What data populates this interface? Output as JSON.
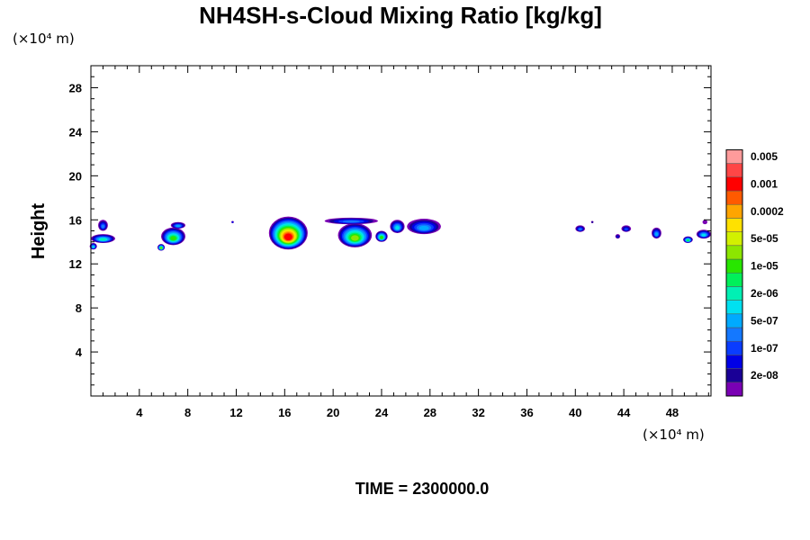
{
  "chart_data": {
    "type": "heatmap",
    "title": "NH4SH-s-Cloud Mixing Ratio [kg/kg]",
    "x_unit": "(×10⁴  m)",
    "y_unit": "(×10⁴  m)",
    "ylabel": "Height",
    "xlabel": "",
    "xlim": [
      0,
      51.2
    ],
    "ylim": [
      0,
      30
    ],
    "x_ticks": [
      4,
      8,
      12,
      16,
      20,
      24,
      28,
      32,
      36,
      40,
      44,
      48
    ],
    "y_ticks": [
      4,
      8,
      12,
      16,
      20,
      24,
      28
    ],
    "x_tick_labels": [
      "4",
      "8",
      "12",
      "16",
      "20",
      "24",
      "28",
      "32",
      "36",
      "40",
      "44",
      "48"
    ],
    "y_tick_labels": [
      "4",
      "8",
      "12",
      "16",
      "20",
      "24",
      "28"
    ],
    "colorbar": {
      "colors": [
        "#7a00b4",
        "#1a0096",
        "#0000e6",
        "#0a3cff",
        "#1478ff",
        "#00aaff",
        "#00e1f0",
        "#00f0b4",
        "#00f05a",
        "#28e600",
        "#8ce600",
        "#d2f000",
        "#ffe100",
        "#ffa500",
        "#ff5a00",
        "#ff0000",
        "#ff4646",
        "#ff9b9b"
      ],
      "labels": [
        "2e-08",
        "1e-07",
        "5e-07",
        "2e-06",
        "1e-05",
        "5e-05",
        "0.0002",
        "0.001",
        "0.005"
      ],
      "label_level_index": [
        1,
        3,
        5,
        7,
        9,
        11,
        13,
        15,
        17
      ]
    },
    "cloud_features": [
      {
        "x": 1.0,
        "y": 14.3,
        "rx": 1.0,
        "ry": 0.4,
        "peak_level": 7
      },
      {
        "x": 1.0,
        "y": 15.5,
        "rx": 0.4,
        "ry": 0.5,
        "peak_level": 4
      },
      {
        "x": 0.2,
        "y": 13.6,
        "rx": 0.3,
        "ry": 0.3,
        "peak_level": 6
      },
      {
        "x": 6.8,
        "y": 14.5,
        "rx": 1.0,
        "ry": 0.8,
        "peak_level": 9
      },
      {
        "x": 7.2,
        "y": 15.5,
        "rx": 0.6,
        "ry": 0.3,
        "peak_level": 5
      },
      {
        "x": 5.8,
        "y": 13.5,
        "rx": 0.3,
        "ry": 0.3,
        "peak_level": 10
      },
      {
        "x": 11.7,
        "y": 15.8,
        "rx": 0.1,
        "ry": 0.1,
        "peak_level": 2
      },
      {
        "x": 16.3,
        "y": 14.8,
        "rx": 1.6,
        "ry": 1.5,
        "peak_level": 15
      },
      {
        "x": 21.8,
        "y": 14.6,
        "rx": 1.4,
        "ry": 1.1,
        "peak_level": 10
      },
      {
        "x": 21.5,
        "y": 15.9,
        "rx": 2.2,
        "ry": 0.3,
        "peak_level": 4
      },
      {
        "x": 24.0,
        "y": 14.5,
        "rx": 0.5,
        "ry": 0.5,
        "peak_level": 9
      },
      {
        "x": 25.3,
        "y": 15.4,
        "rx": 0.6,
        "ry": 0.6,
        "peak_level": 6
      },
      {
        "x": 27.5,
        "y": 15.4,
        "rx": 1.4,
        "ry": 0.7,
        "peak_level": 5
      },
      {
        "x": 40.4,
        "y": 15.2,
        "rx": 0.4,
        "ry": 0.3,
        "peak_level": 4
      },
      {
        "x": 41.4,
        "y": 15.8,
        "rx": 0.1,
        "ry": 0.1,
        "peak_level": 1
      },
      {
        "x": 44.2,
        "y": 15.2,
        "rx": 0.4,
        "ry": 0.3,
        "peak_level": 3
      },
      {
        "x": 43.5,
        "y": 14.5,
        "rx": 0.2,
        "ry": 0.2,
        "peak_level": 2
      },
      {
        "x": 46.7,
        "y": 14.8,
        "rx": 0.4,
        "ry": 0.5,
        "peak_level": 5
      },
      {
        "x": 49.3,
        "y": 14.2,
        "rx": 0.4,
        "ry": 0.3,
        "peak_level": 8
      },
      {
        "x": 50.6,
        "y": 14.7,
        "rx": 0.6,
        "ry": 0.4,
        "peak_level": 6
      },
      {
        "x": 50.7,
        "y": 15.8,
        "rx": 0.2,
        "ry": 0.2,
        "peak_level": 0
      }
    ]
  },
  "time_label": "TIME = 2300000.0"
}
